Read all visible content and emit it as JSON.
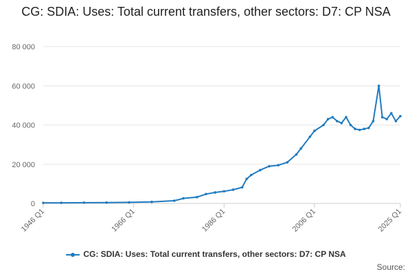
{
  "chart_data": {
    "type": "line",
    "title": "CG: SDIA: Uses: Total current transfers, other sectors: D7: CP NSA",
    "xlabel": "",
    "ylabel": "",
    "x_tick_labels": [
      "1946 Q1",
      "1966 Q1",
      "1986 Q1",
      "2006 Q1",
      "2025 Q1"
    ],
    "y_ticks": [
      0,
      20000,
      40000,
      60000,
      80000
    ],
    "y_tick_labels": [
      "0",
      "20 000",
      "40 000",
      "60 000",
      "80 000"
    ],
    "ylim": [
      0,
      80000
    ],
    "xlim": [
      "1946 Q1",
      "2025 Q1"
    ],
    "grid": "horizontal",
    "legend_position": "bottom",
    "series": [
      {
        "name": "CG: SDIA: Uses: Total current transfers, other sectors: D7: CP NSA",
        "color": "#1f7bbf",
        "points": [
          [
            "1946 Q1",
            300
          ],
          [
            "1950 Q1",
            320
          ],
          [
            "1955 Q1",
            380
          ],
          [
            "1960 Q1",
            450
          ],
          [
            "1965 Q1",
            550
          ],
          [
            "1970 Q1",
            800
          ],
          [
            "1975 Q1",
            1400
          ],
          [
            "1977 Q1",
            2600
          ],
          [
            "1980 Q1",
            3200
          ],
          [
            "1982 Q1",
            4800
          ],
          [
            "1984 Q1",
            5600
          ],
          [
            "1986 Q1",
            6200
          ],
          [
            "1988 Q1",
            7000
          ],
          [
            "1990 Q1",
            8200
          ],
          [
            "1991 Q1",
            12500
          ],
          [
            "1992 Q1",
            14500
          ],
          [
            "1994 Q1",
            17000
          ],
          [
            "1996 Q1",
            19000
          ],
          [
            "1998 Q1",
            19500
          ],
          [
            "2000 Q1",
            21000
          ],
          [
            "2002 Q1",
            25000
          ],
          [
            "2003 Q1",
            28000
          ],
          [
            "2005 Q1",
            34000
          ],
          [
            "2006 Q1",
            37000
          ],
          [
            "2008 Q1",
            40000
          ],
          [
            "2009 Q1",
            43000
          ],
          [
            "2010 Q1",
            44000
          ],
          [
            "2011 Q1",
            42000
          ],
          [
            "2012 Q1",
            41000
          ],
          [
            "2013 Q1",
            44000
          ],
          [
            "2014 Q1",
            40000
          ],
          [
            "2015 Q1",
            38000
          ],
          [
            "2016 Q1",
            37500
          ],
          [
            "2017 Q1",
            38000
          ],
          [
            "2018 Q1",
            38500
          ],
          [
            "2019 Q1",
            42000
          ],
          [
            "2020 Q2",
            60000
          ],
          [
            "2021 Q1",
            44000
          ],
          [
            "2022 Q1",
            43000
          ],
          [
            "2023 Q1",
            46000
          ],
          [
            "2024 Q1",
            42000
          ],
          [
            "2025 Q1",
            44500
          ]
        ]
      }
    ]
  },
  "footer": {
    "source_label": "Source:"
  }
}
